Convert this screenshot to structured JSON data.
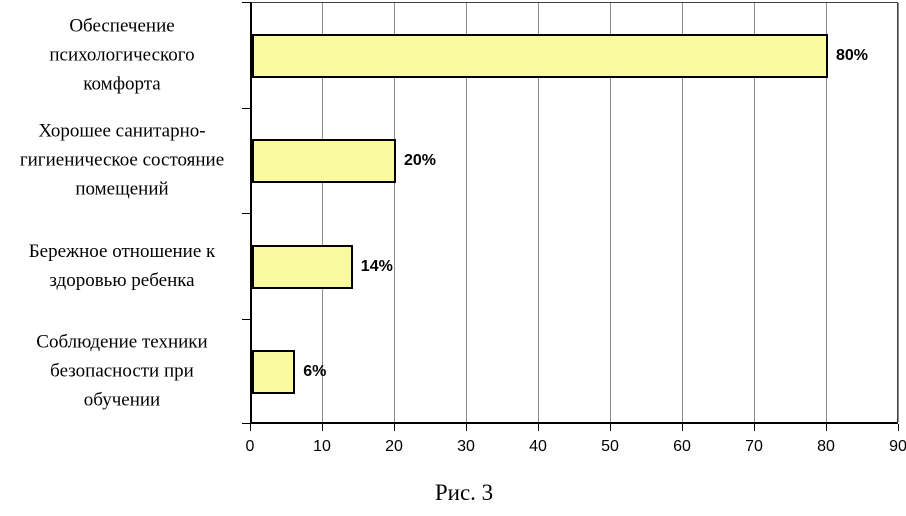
{
  "figure": {
    "caption": "Рис. 3"
  },
  "chart_data": {
    "type": "bar",
    "orientation": "horizontal",
    "title": "",
    "xlabel": "",
    "ylabel": "",
    "categories": [
      "Обеспечение психологического комфорта",
      "Хорошее санитарно-гигиеническое состояние помещений",
      "Бережное отношение к здоровью ребенка",
      "Соблюдение техники безопасности при обучении"
    ],
    "values": [
      80,
      20,
      14,
      6
    ],
    "data_labels": [
      "80%",
      "20%",
      "14%",
      "6%"
    ],
    "xlim": [
      0,
      90
    ],
    "x_ticks": [
      0,
      10,
      20,
      30,
      40,
      50,
      60,
      70,
      80,
      90
    ],
    "grid": true,
    "legend": false,
    "colors": {
      "bar_fill": "#FAFA9E",
      "bar_border": "#000000",
      "gridline": "#8C8C8C",
      "axis": "#000000",
      "background": "#FFFFFF"
    }
  }
}
